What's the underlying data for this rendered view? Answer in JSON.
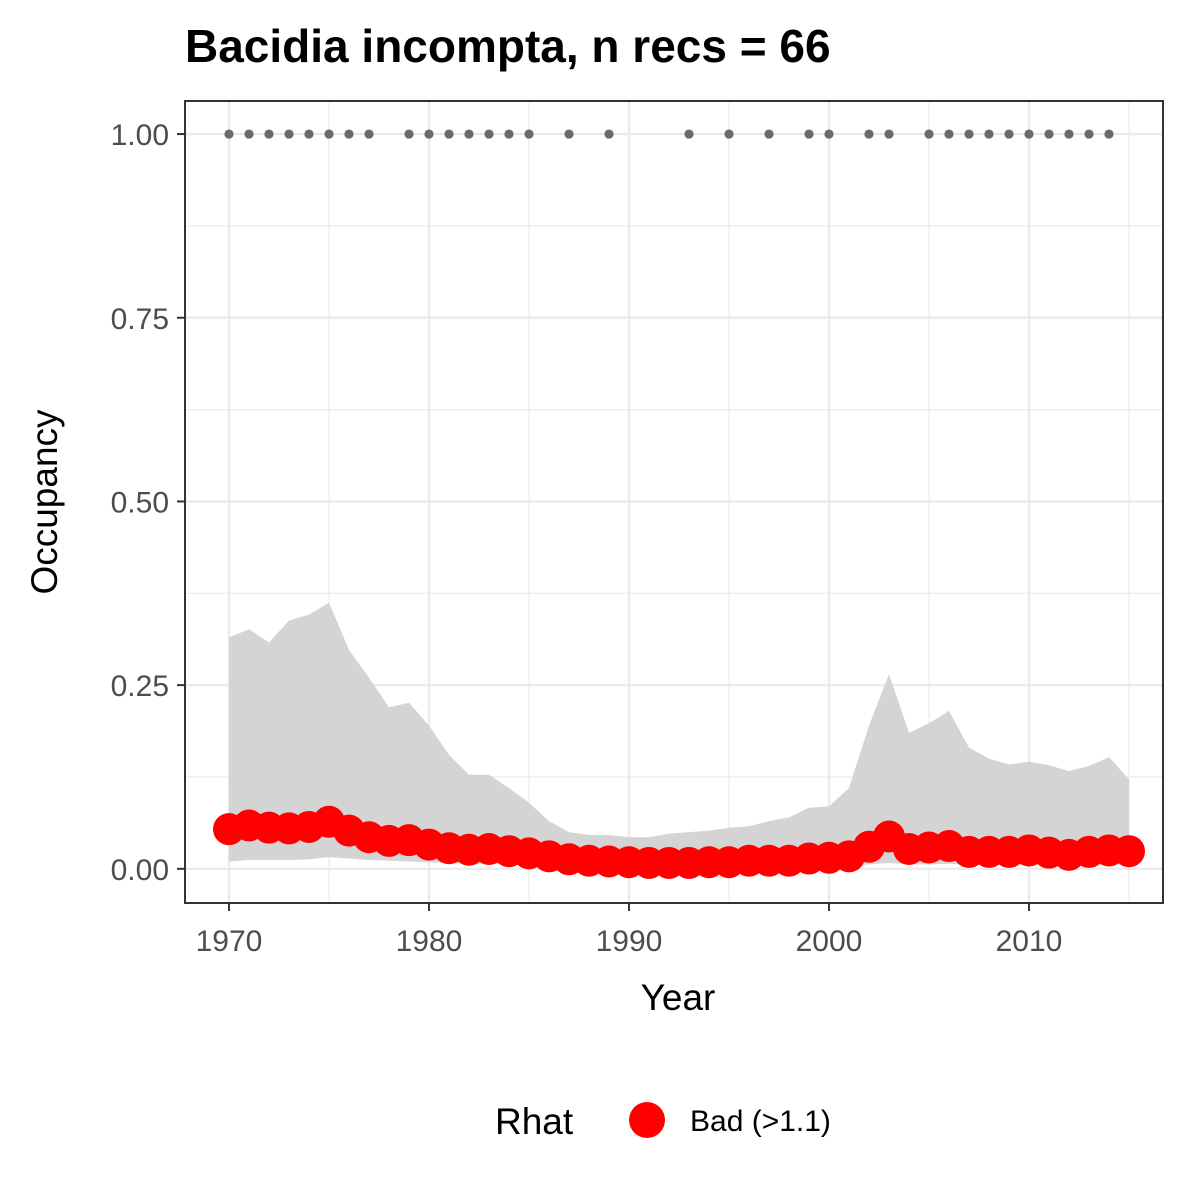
{
  "chart_data": {
    "type": "line",
    "title": "Bacidia incompta, n recs = 66",
    "xlabel": "Year",
    "ylabel": "Occupancy",
    "xlim": [
      1967.8,
      2016.7
    ],
    "ylim": [
      -0.0465,
      1.045
    ],
    "x_ticks": [
      1970,
      1980,
      1990,
      2000,
      2010
    ],
    "x_tick_labels": [
      "1970",
      "1980",
      "1990",
      "2000",
      "2010"
    ],
    "y_ticks": [
      0,
      0.25,
      0.5,
      0.75,
      1
    ],
    "y_tick_labels": [
      "0.00",
      "0.25",
      "0.50",
      "0.75",
      "1.00"
    ],
    "grid": true,
    "legend": {
      "title": "Rhat",
      "position": "bottom",
      "entries": [
        {
          "label": "Bad (>1.1)",
          "color": "#ff0000"
        }
      ]
    },
    "colors": {
      "mean_points": "#ff0000",
      "ribbon": "#d4d4d4",
      "record_points": "#6b6b6b",
      "grid": "#ebebeb",
      "panel_border": "#333333"
    },
    "x": [
      1970,
      1971,
      1972,
      1973,
      1974,
      1975,
      1976,
      1977,
      1978,
      1979,
      1980,
      1981,
      1982,
      1983,
      1984,
      1985,
      1986,
      1987,
      1988,
      1989,
      1990,
      1991,
      1992,
      1993,
      1994,
      1995,
      1996,
      1997,
      1998,
      1999,
      2000,
      2001,
      2002,
      2003,
      2004,
      2005,
      2006,
      2007,
      2008,
      2009,
      2010,
      2011,
      2012,
      2013,
      2014,
      2015
    ],
    "series": [
      {
        "values": [
          0.054,
          0.059,
          0.056,
          0.055,
          0.057,
          0.064,
          0.052,
          0.043,
          0.038,
          0.039,
          0.033,
          0.028,
          0.026,
          0.027,
          0.024,
          0.021,
          0.017,
          0.013,
          0.011,
          0.01,
          0.009,
          0.008,
          0.008,
          0.008,
          0.009,
          0.009,
          0.011,
          0.011,
          0.011,
          0.014,
          0.015,
          0.017,
          0.03,
          0.044,
          0.027,
          0.029,
          0.031,
          0.023,
          0.023,
          0.023,
          0.025,
          0.022,
          0.019,
          0.023,
          0.025,
          0.024
        ],
        "lower": [
          0.01,
          0.012,
          0.012,
          0.012,
          0.013,
          0.016,
          0.014,
          0.012,
          0.011,
          0.01,
          0.009,
          0.008,
          0.007,
          0.007,
          0.006,
          0.005,
          0.004,
          0.003,
          0.003,
          0.003,
          0.002,
          0.002,
          0.002,
          0.002,
          0.002,
          0.002,
          0.003,
          0.003,
          0.003,
          0.004,
          0.004,
          0.004,
          0.006,
          0.008,
          0.006,
          0.006,
          0.007,
          0.005,
          0.005,
          0.005,
          0.006,
          0.005,
          0.004,
          0.005,
          0.006,
          0.006
        ],
        "upper": [
          0.315,
          0.326,
          0.308,
          0.338,
          0.346,
          0.362,
          0.298,
          0.26,
          0.22,
          0.226,
          0.195,
          0.155,
          0.128,
          0.128,
          0.11,
          0.09,
          0.065,
          0.05,
          0.046,
          0.046,
          0.043,
          0.043,
          0.048,
          0.05,
          0.052,
          0.056,
          0.058,
          0.065,
          0.07,
          0.083,
          0.085,
          0.11,
          0.195,
          0.265,
          0.185,
          0.198,
          0.215,
          0.165,
          0.15,
          0.142,
          0.146,
          0.141,
          0.133,
          0.14,
          0.152,
          0.122
        ]
      }
    ],
    "records": {
      "y": 1,
      "x": [
        1970,
        1971,
        1972,
        1973,
        1974,
        1975,
        1976,
        1977,
        1979,
        1980,
        1981,
        1982,
        1983,
        1984,
        1985,
        1987,
        1989,
        1993,
        1995,
        1997,
        1999,
        2000,
        2002,
        2003,
        2005,
        2006,
        2007,
        2008,
        2009,
        2010,
        2011,
        2012,
        2013,
        2014
      ]
    }
  }
}
